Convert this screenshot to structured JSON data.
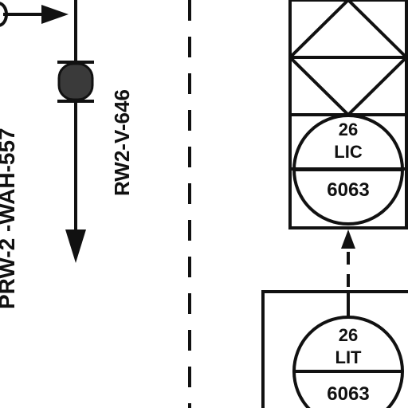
{
  "diagram": {
    "line_label_left": "PRW-2 -WAH-557",
    "valve_tag": "RW2-V-646",
    "controller": {
      "loop": "26",
      "function": "LIC",
      "number": "6063"
    },
    "transmitter": {
      "loop": "26",
      "function": "LIT",
      "number": "6063"
    }
  },
  "colors": {
    "ink": "#111111",
    "background": "#ffffff",
    "valve_fill": "#3a3a3a"
  }
}
